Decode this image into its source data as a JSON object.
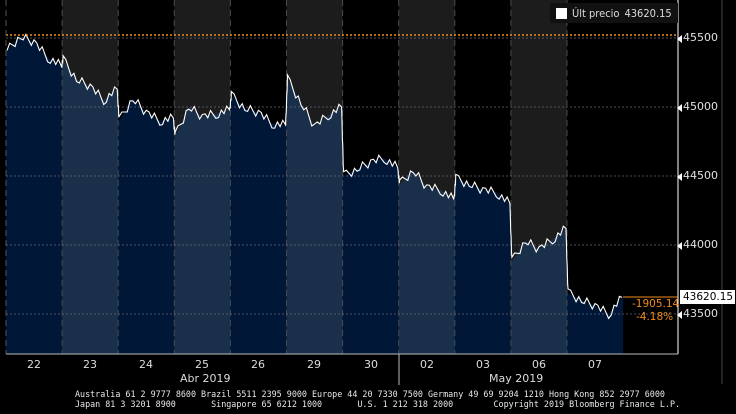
{
  "legend": {
    "label": "Últ precio",
    "value": "43620.15",
    "swatch_color": "#ffffff"
  },
  "last_price_label": "43620.15",
  "change": {
    "abs": "-1905.14",
    "pct": "-4.18%",
    "color": "#f08c1a"
  },
  "y_axis": {
    "ticks": [
      "45500",
      "45000",
      "44500",
      "44000",
      "43500"
    ]
  },
  "x_axis": {
    "days": [
      "22",
      "23",
      "24",
      "25",
      "26",
      "29",
      "30",
      "02",
      "03",
      "06",
      "07"
    ],
    "months": [
      "Abr 2019",
      "May 2019"
    ]
  },
  "footer": {
    "line1": "Australia 61 2 9777 8600 Brazil 5511 2395 9000 Europe 44 20 7330 7500 Germany 49 69 9204 1210 Hong Kong 852 2977 6000",
    "line2": "Japan 81 3 3201 8900       Singapore 65 6212 1000       U.S. 1 212 318 2000        Copyright 2019 Bloomberg Finance L.P."
  },
  "colors": {
    "background": "#000000",
    "band_dark_top": "#000000",
    "band_light_top": "#1c1c1c",
    "area_dark": "#001738",
    "area_light": "#1a304a",
    "line": "#ffffff",
    "reference_line": "#f08c1a"
  },
  "chart_data": {
    "type": "area",
    "title": "",
    "series": [
      {
        "name": "Últ precio",
        "x": [
          "22",
          "22",
          "22",
          "22",
          "22",
          "23",
          "23",
          "23",
          "23",
          "23",
          "24",
          "24",
          "24",
          "24",
          "24",
          "25",
          "25",
          "25",
          "25",
          "25",
          "26",
          "26",
          "26",
          "26",
          "26",
          "29",
          "29",
          "29",
          "29",
          "29",
          "30",
          "30",
          "30",
          "30",
          "30",
          "02",
          "02",
          "02",
          "02",
          "02",
          "03",
          "03",
          "03",
          "03",
          "03",
          "06",
          "06",
          "06",
          "06",
          "06",
          "07",
          "07",
          "07",
          "07",
          "07"
        ],
        "values": [
          45410,
          45510,
          45470,
          45360,
          45300,
          45340,
          45200,
          45150,
          45050,
          45130,
          44900,
          45060,
          44960,
          44900,
          44920,
          44790,
          45000,
          44930,
          44950,
          44980,
          45080,
          44990,
          44960,
          44880,
          44870,
          45200,
          45030,
          44860,
          44940,
          45000,
          44500,
          44550,
          44600,
          44630,
          44560,
          44440,
          44540,
          44420,
          44400,
          44330,
          44480,
          44440,
          44400,
          44380,
          44300,
          43880,
          44030,
          43970,
          44040,
          44120,
          43650,
          43600,
          43560,
          43500,
          43620
        ]
      }
    ],
    "ylim": [
      43300,
      45800
    ],
    "y_ticks": [
      43500,
      44000,
      44500,
      45000,
      45500
    ],
    "reference_line": {
      "value": 45525,
      "style": "dotted",
      "color": "#f08c1a"
    },
    "last_value": 43620.15,
    "change_abs": -1905.14,
    "change_pct": -4.18,
    "xlabel": "",
    "ylabel": "",
    "legend_position": "top-right",
    "grid": true
  }
}
